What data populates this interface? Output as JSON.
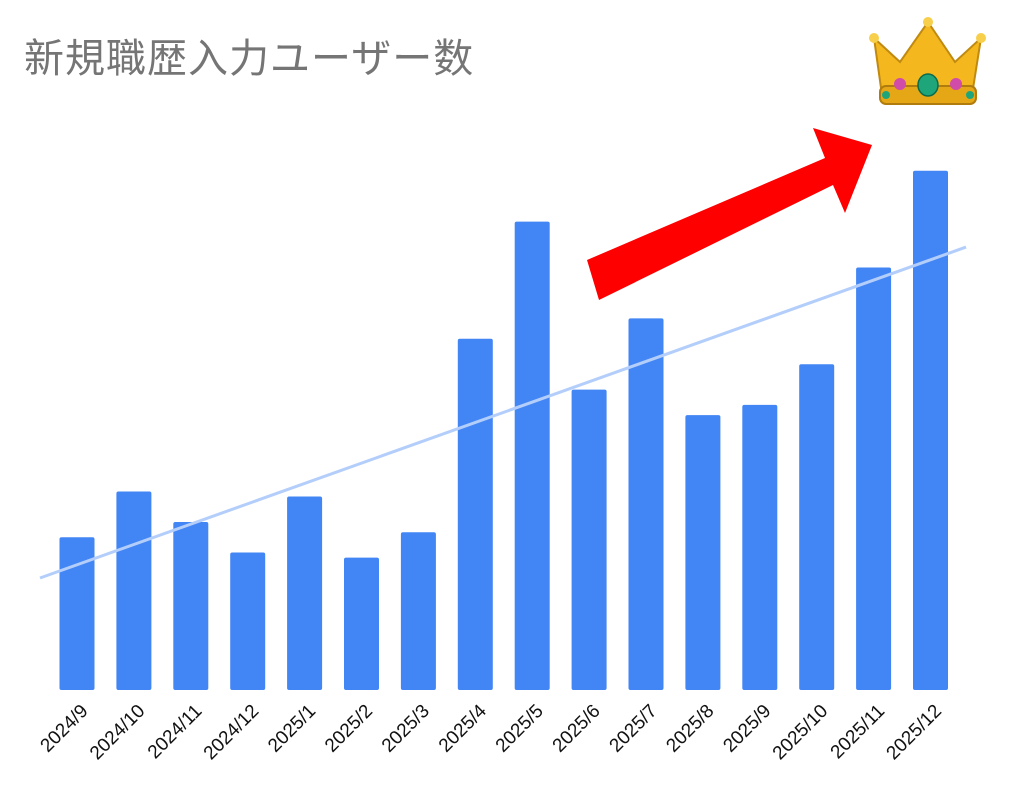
{
  "chart_data": {
    "type": "bar",
    "title": "新規職歴入力ユーザー数",
    "xlabel": "",
    "ylabel": "",
    "categories": [
      "2024/9",
      "2024/10",
      "2024/11",
      "2024/12",
      "2025/1",
      "2025/2",
      "2025/3",
      "2025/4",
      "2025/5",
      "2025/6",
      "2025/7",
      "2025/8",
      "2025/9",
      "2025/10",
      "2025/11",
      "2025/12"
    ],
    "series": [
      {
        "values": [
          30,
          39,
          33,
          27,
          38,
          26,
          31,
          69,
          92,
          59,
          73,
          54,
          56,
          64,
          83,
          102
        ],
        "color": "#4285f4"
      }
    ],
    "trendline": {
      "type": "linear",
      "start": 22,
      "end": 87,
      "color": "#b3cefb"
    },
    "ylim": [
      0,
      110
    ],
    "grid": false,
    "legend": "none",
    "annotations": [
      {
        "type": "arrow",
        "direction": "up-right",
        "color": "#ff0000"
      },
      {
        "type": "icon",
        "name": "crown-icon",
        "glyph": "👑"
      }
    ]
  }
}
